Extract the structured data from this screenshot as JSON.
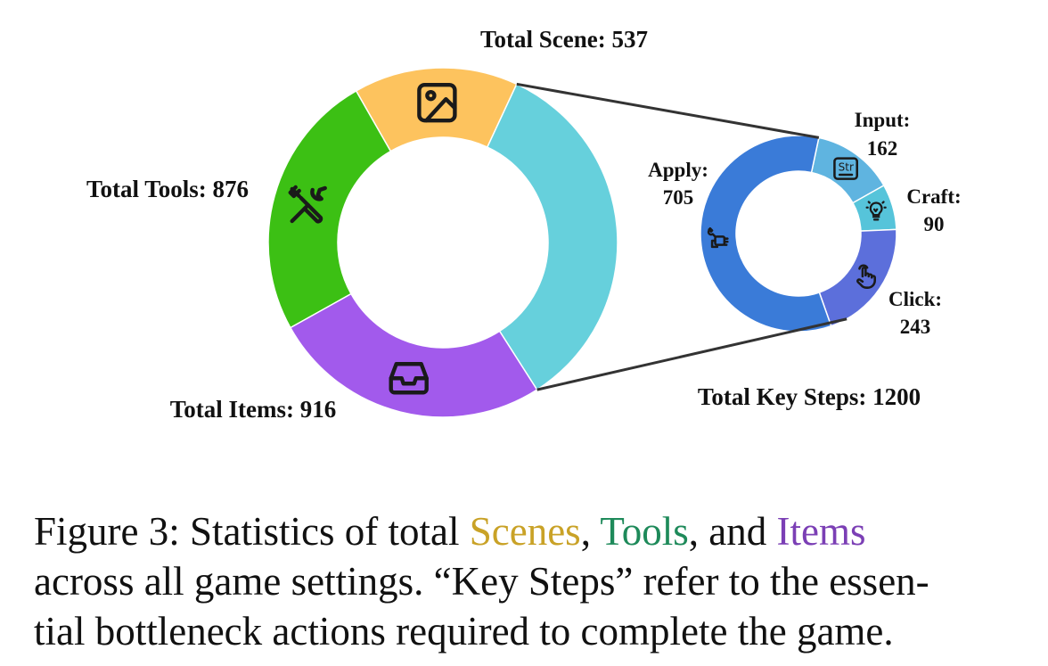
{
  "chart_data": [
    {
      "type": "donut",
      "slices": [
        {
          "label": "Total Scene: 537",
          "value": 537,
          "color": "#FDC35E",
          "icon": "image-icon"
        },
        {
          "label": "Total Key Steps: 1200",
          "value": 1200,
          "color": "#66D0DC",
          "icon": ""
        },
        {
          "label": "Total Items: 916",
          "value": 916,
          "color": "#A25AEC",
          "icon": "inbox-icon"
        },
        {
          "label": "Total Tools: 876",
          "value": 876,
          "color": "#3CC014",
          "icon": "tools-icon"
        }
      ]
    },
    {
      "type": "donut",
      "slices": [
        {
          "label": "Input:",
          "value": 162,
          "color": "#5FB4E0",
          "icon": "string-input-icon"
        },
        {
          "label": "Craft:",
          "value": 90,
          "color": "#56C4DA",
          "icon": "lightbulb-icon"
        },
        {
          "label": "Click:",
          "value": 243,
          "color": "#5C6FDB",
          "icon": "pointer-hand-icon"
        },
        {
          "label": "Apply:",
          "value": 705,
          "color": "#3A7BD8",
          "icon": "hand-wrench-icon"
        }
      ]
    }
  ],
  "caption": {
    "prefix": "Figure 3:  Statistics of total ",
    "scenes": "Scenes",
    "comma1": ", ",
    "tools": "Tools",
    "and": ", and ",
    "items": "Items",
    "line2": "across all game settings. “Key Steps” refer to the essen-",
    "line3": "tial bottleneck actions required to complete the game.",
    "colors": {
      "scenes": "#C9A227",
      "tools": "#1E8A5A",
      "items": "#7B3FB5"
    }
  },
  "icon_text": {
    "input": "Str"
  }
}
